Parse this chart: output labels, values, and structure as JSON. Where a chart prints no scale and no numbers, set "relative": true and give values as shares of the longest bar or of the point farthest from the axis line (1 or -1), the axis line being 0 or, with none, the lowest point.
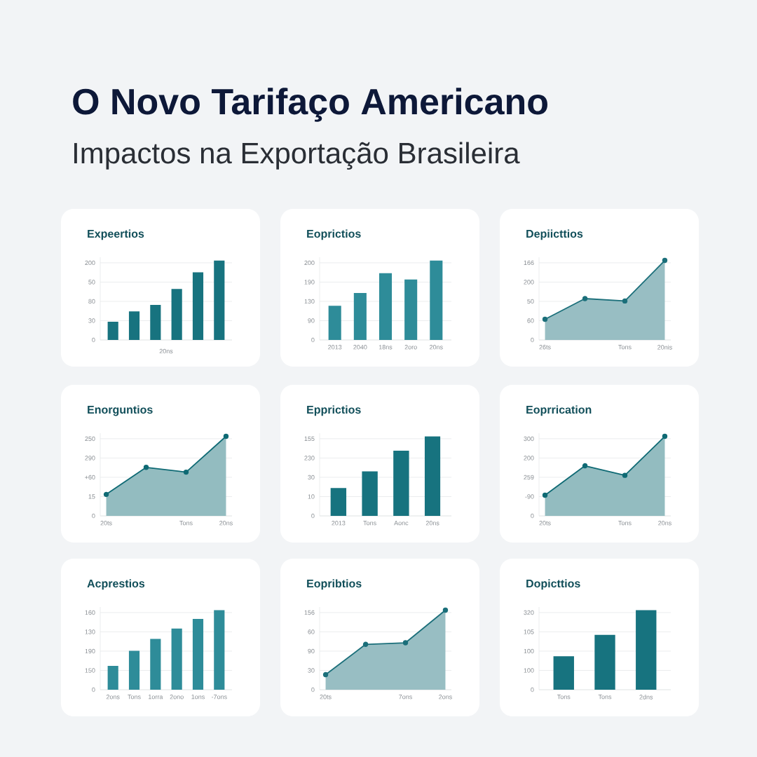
{
  "chart_data": [
    {
      "type": "other",
      "title": "O Novo Tarifaço Americano",
      "subtitle": "Impactos na Exportação Brasileira"
    },
    {
      "type": "bar",
      "title": "Expeertios",
      "xlabel": "20ns",
      "relative": true,
      "categories": [
        null,
        null,
        null,
        null,
        null,
        null
      ],
      "values": [
        0.23,
        0.36,
        0.44,
        0.64,
        0.85,
        1
      ],
      "color": "#17737f",
      "annotations": [
        "0",
        "30",
        "80",
        "50",
        "200"
      ],
      "grid": "y"
    },
    {
      "type": "bar",
      "title": "Eoprictios",
      "relative": true,
      "categories": [
        "2013",
        "2040",
        "18ns",
        "2oro",
        "20ns"
      ],
      "values": [
        0.43,
        0.59,
        0.84,
        0.76,
        1
      ],
      "color": "#2e8c99",
      "annotations": [
        "0",
        "90",
        "130",
        "190",
        "200"
      ],
      "grid": "y"
    },
    {
      "type": "area",
      "title": "Depiicttios",
      "relative": true,
      "categories": [
        "26ts",
        null,
        "Tons",
        "20nis"
      ],
      "values": [
        0.26,
        0.52,
        0.49,
        1
      ],
      "color": "#1b6f7a",
      "marker": "circle",
      "annotations": [
        "0",
        "60",
        "50",
        "200",
        "166"
      ],
      "grid": "y"
    },
    {
      "type": "area",
      "title": "Enorguntios",
      "relative": true,
      "categories": [
        "20ts",
        null,
        "Tons",
        "20ns"
      ],
      "values": [
        0.27,
        0.61,
        0.55,
        1
      ],
      "color": "#0f6a74",
      "marker": "circle",
      "annotations": [
        "0",
        "15",
        "+60",
        "290",
        "250"
      ],
      "grid": "y"
    },
    {
      "type": "bar",
      "title": "Epprictios",
      "relative": true,
      "categories": [
        "2013",
        "Tons",
        "Aonc",
        "20ns"
      ],
      "values": [
        0.35,
        0.56,
        0.82,
        1
      ],
      "color": "#17737f",
      "annotations": [
        "0",
        "10",
        "30",
        "230",
        "155"
      ],
      "grid": "y"
    },
    {
      "type": "area",
      "title": "Eoprrication",
      "relative": true,
      "categories": [
        "20ts",
        null,
        "Tons",
        "20ns"
      ],
      "values": [
        0.26,
        0.63,
        0.51,
        1
      ],
      "color": "#0f6a74",
      "marker": "circle",
      "annotations": [
        "0",
        "-90",
        "259",
        "200",
        "300"
      ],
      "grid": "y"
    },
    {
      "type": "bar",
      "title": "Acprestios",
      "relative": true,
      "categories": [
        "2ons",
        "Tons",
        "1orra",
        "2ono",
        "1ons",
        "-7ons"
      ],
      "values": [
        0.3,
        0.49,
        0.64,
        0.77,
        0.89,
        1
      ],
      "color": "#2e8c99",
      "annotations": [
        "0",
        "150",
        "190",
        "130",
        "160"
      ],
      "grid": "y"
    },
    {
      "type": "area",
      "title": "Eopribtios",
      "relative": true,
      "categories": [
        "20ts",
        null,
        "7ons",
        "2ons"
      ],
      "values": [
        0.19,
        0.57,
        0.59,
        1
      ],
      "color": "#1b6f7a",
      "marker": "circle",
      "annotations": [
        "0",
        "30",
        "90",
        "60",
        "156"
      ],
      "grid": "y"
    },
    {
      "type": "bar",
      "title": "Dopicttios",
      "relative": true,
      "categories": [
        "Tons",
        "Tons",
        "2dns"
      ],
      "values": [
        0.42,
        0.69,
        1
      ],
      "color": "#17737f",
      "annotations": [
        "0",
        "100",
        "100",
        "105",
        "320"
      ],
      "grid": "y"
    }
  ]
}
